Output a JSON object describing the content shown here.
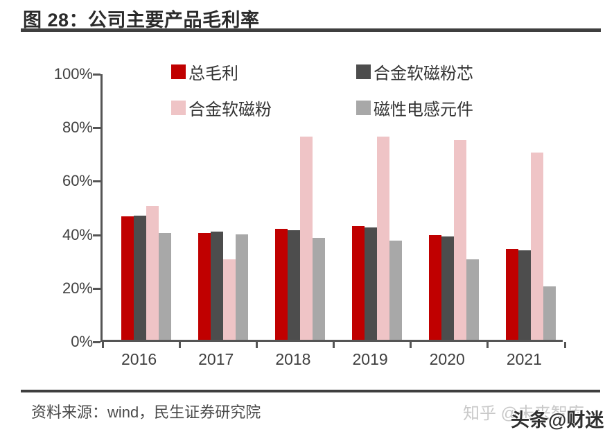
{
  "figure": {
    "title": "图 28：公司主要产品毛利率",
    "source": "资料来源：wind，民生证券研究院"
  },
  "watermarks": {
    "zhihu": "知乎 @未来智库",
    "toutiao": "头条@财迷"
  },
  "colors": {
    "accent_red": "#C00000",
    "dark_gray": "#4D4D4D",
    "pink": "#EFC4C6",
    "light_gray": "#A8A8A8",
    "axis": "#555555",
    "rule": "#3f3f3f"
  },
  "chart_data": {
    "type": "bar",
    "title": "公司主要产品毛利率",
    "categories": [
      "2016",
      "2017",
      "2018",
      "2019",
      "2020",
      "2021"
    ],
    "series": [
      {
        "name": "总毛利",
        "color": "#C00000",
        "values": [
          46,
          40,
          41.5,
          42.5,
          39,
          34
        ]
      },
      {
        "name": "合金软磁粉芯",
        "color": "#4D4D4D",
        "values": [
          46.5,
          40.5,
          41,
          42,
          38.5,
          33.5
        ]
      },
      {
        "name": "合金软磁粉",
        "color": "#EFC4C6",
        "values": [
          50,
          30,
          76,
          76,
          74.5,
          70
        ]
      },
      {
        "name": "磁性电感元件",
        "color": "#A8A8A8",
        "values": [
          40,
          39.5,
          38,
          37,
          30,
          20
        ]
      }
    ],
    "xlabel": "",
    "ylabel": "",
    "ylim": [
      0,
      100
    ],
    "yticks": [
      "0%",
      "20%",
      "40%",
      "60%",
      "80%",
      "100%"
    ],
    "legend_position": "top",
    "grid": false
  }
}
